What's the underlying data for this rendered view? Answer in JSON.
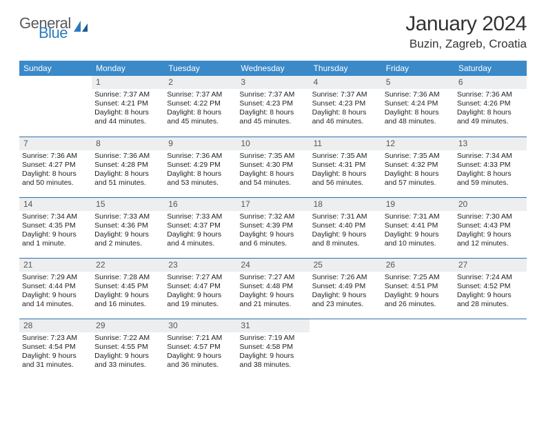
{
  "logo": {
    "general": "General",
    "blue": "Blue"
  },
  "title": "January 2024",
  "subtitle": "Buzin, Zagreb, Croatia",
  "header_bg": "#3a89c9",
  "header_fg": "#ffffff",
  "daynum_bg": "#eceeef",
  "rule_color": "#2f6fa8",
  "weekdays": [
    "Sunday",
    "Monday",
    "Tuesday",
    "Wednesday",
    "Thursday",
    "Friday",
    "Saturday"
  ],
  "weeks": [
    [
      {
        "n": "",
        "sunrise": "",
        "sunset": "",
        "daylight1": "",
        "daylight2": ""
      },
      {
        "n": "1",
        "sunrise": "Sunrise: 7:37 AM",
        "sunset": "Sunset: 4:21 PM",
        "daylight1": "Daylight: 8 hours",
        "daylight2": "and 44 minutes."
      },
      {
        "n": "2",
        "sunrise": "Sunrise: 7:37 AM",
        "sunset": "Sunset: 4:22 PM",
        "daylight1": "Daylight: 8 hours",
        "daylight2": "and 45 minutes."
      },
      {
        "n": "3",
        "sunrise": "Sunrise: 7:37 AM",
        "sunset": "Sunset: 4:23 PM",
        "daylight1": "Daylight: 8 hours",
        "daylight2": "and 45 minutes."
      },
      {
        "n": "4",
        "sunrise": "Sunrise: 7:37 AM",
        "sunset": "Sunset: 4:23 PM",
        "daylight1": "Daylight: 8 hours",
        "daylight2": "and 46 minutes."
      },
      {
        "n": "5",
        "sunrise": "Sunrise: 7:36 AM",
        "sunset": "Sunset: 4:24 PM",
        "daylight1": "Daylight: 8 hours",
        "daylight2": "and 48 minutes."
      },
      {
        "n": "6",
        "sunrise": "Sunrise: 7:36 AM",
        "sunset": "Sunset: 4:26 PM",
        "daylight1": "Daylight: 8 hours",
        "daylight2": "and 49 minutes."
      }
    ],
    [
      {
        "n": "7",
        "sunrise": "Sunrise: 7:36 AM",
        "sunset": "Sunset: 4:27 PM",
        "daylight1": "Daylight: 8 hours",
        "daylight2": "and 50 minutes."
      },
      {
        "n": "8",
        "sunrise": "Sunrise: 7:36 AM",
        "sunset": "Sunset: 4:28 PM",
        "daylight1": "Daylight: 8 hours",
        "daylight2": "and 51 minutes."
      },
      {
        "n": "9",
        "sunrise": "Sunrise: 7:36 AM",
        "sunset": "Sunset: 4:29 PM",
        "daylight1": "Daylight: 8 hours",
        "daylight2": "and 53 minutes."
      },
      {
        "n": "10",
        "sunrise": "Sunrise: 7:35 AM",
        "sunset": "Sunset: 4:30 PM",
        "daylight1": "Daylight: 8 hours",
        "daylight2": "and 54 minutes."
      },
      {
        "n": "11",
        "sunrise": "Sunrise: 7:35 AM",
        "sunset": "Sunset: 4:31 PM",
        "daylight1": "Daylight: 8 hours",
        "daylight2": "and 56 minutes."
      },
      {
        "n": "12",
        "sunrise": "Sunrise: 7:35 AM",
        "sunset": "Sunset: 4:32 PM",
        "daylight1": "Daylight: 8 hours",
        "daylight2": "and 57 minutes."
      },
      {
        "n": "13",
        "sunrise": "Sunrise: 7:34 AM",
        "sunset": "Sunset: 4:33 PM",
        "daylight1": "Daylight: 8 hours",
        "daylight2": "and 59 minutes."
      }
    ],
    [
      {
        "n": "14",
        "sunrise": "Sunrise: 7:34 AM",
        "sunset": "Sunset: 4:35 PM",
        "daylight1": "Daylight: 9 hours",
        "daylight2": "and 1 minute."
      },
      {
        "n": "15",
        "sunrise": "Sunrise: 7:33 AM",
        "sunset": "Sunset: 4:36 PM",
        "daylight1": "Daylight: 9 hours",
        "daylight2": "and 2 minutes."
      },
      {
        "n": "16",
        "sunrise": "Sunrise: 7:33 AM",
        "sunset": "Sunset: 4:37 PM",
        "daylight1": "Daylight: 9 hours",
        "daylight2": "and 4 minutes."
      },
      {
        "n": "17",
        "sunrise": "Sunrise: 7:32 AM",
        "sunset": "Sunset: 4:39 PM",
        "daylight1": "Daylight: 9 hours",
        "daylight2": "and 6 minutes."
      },
      {
        "n": "18",
        "sunrise": "Sunrise: 7:31 AM",
        "sunset": "Sunset: 4:40 PM",
        "daylight1": "Daylight: 9 hours",
        "daylight2": "and 8 minutes."
      },
      {
        "n": "19",
        "sunrise": "Sunrise: 7:31 AM",
        "sunset": "Sunset: 4:41 PM",
        "daylight1": "Daylight: 9 hours",
        "daylight2": "and 10 minutes."
      },
      {
        "n": "20",
        "sunrise": "Sunrise: 7:30 AM",
        "sunset": "Sunset: 4:43 PM",
        "daylight1": "Daylight: 9 hours",
        "daylight2": "and 12 minutes."
      }
    ],
    [
      {
        "n": "21",
        "sunrise": "Sunrise: 7:29 AM",
        "sunset": "Sunset: 4:44 PM",
        "daylight1": "Daylight: 9 hours",
        "daylight2": "and 14 minutes."
      },
      {
        "n": "22",
        "sunrise": "Sunrise: 7:28 AM",
        "sunset": "Sunset: 4:45 PM",
        "daylight1": "Daylight: 9 hours",
        "daylight2": "and 16 minutes."
      },
      {
        "n": "23",
        "sunrise": "Sunrise: 7:27 AM",
        "sunset": "Sunset: 4:47 PM",
        "daylight1": "Daylight: 9 hours",
        "daylight2": "and 19 minutes."
      },
      {
        "n": "24",
        "sunrise": "Sunrise: 7:27 AM",
        "sunset": "Sunset: 4:48 PM",
        "daylight1": "Daylight: 9 hours",
        "daylight2": "and 21 minutes."
      },
      {
        "n": "25",
        "sunrise": "Sunrise: 7:26 AM",
        "sunset": "Sunset: 4:49 PM",
        "daylight1": "Daylight: 9 hours",
        "daylight2": "and 23 minutes."
      },
      {
        "n": "26",
        "sunrise": "Sunrise: 7:25 AM",
        "sunset": "Sunset: 4:51 PM",
        "daylight1": "Daylight: 9 hours",
        "daylight2": "and 26 minutes."
      },
      {
        "n": "27",
        "sunrise": "Sunrise: 7:24 AM",
        "sunset": "Sunset: 4:52 PM",
        "daylight1": "Daylight: 9 hours",
        "daylight2": "and 28 minutes."
      }
    ],
    [
      {
        "n": "28",
        "sunrise": "Sunrise: 7:23 AM",
        "sunset": "Sunset: 4:54 PM",
        "daylight1": "Daylight: 9 hours",
        "daylight2": "and 31 minutes."
      },
      {
        "n": "29",
        "sunrise": "Sunrise: 7:22 AM",
        "sunset": "Sunset: 4:55 PM",
        "daylight1": "Daylight: 9 hours",
        "daylight2": "and 33 minutes."
      },
      {
        "n": "30",
        "sunrise": "Sunrise: 7:21 AM",
        "sunset": "Sunset: 4:57 PM",
        "daylight1": "Daylight: 9 hours",
        "daylight2": "and 36 minutes."
      },
      {
        "n": "31",
        "sunrise": "Sunrise: 7:19 AM",
        "sunset": "Sunset: 4:58 PM",
        "daylight1": "Daylight: 9 hours",
        "daylight2": "and 38 minutes."
      },
      {
        "n": "",
        "sunrise": "",
        "sunset": "",
        "daylight1": "",
        "daylight2": ""
      },
      {
        "n": "",
        "sunrise": "",
        "sunset": "",
        "daylight1": "",
        "daylight2": ""
      },
      {
        "n": "",
        "sunrise": "",
        "sunset": "",
        "daylight1": "",
        "daylight2": ""
      }
    ]
  ]
}
